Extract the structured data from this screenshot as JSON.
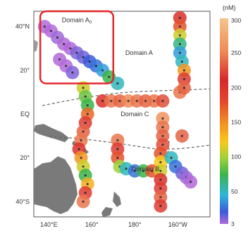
{
  "map": {
    "extent": {
      "lon_min": 133,
      "lon_max": 215,
      "lat_min": -47,
      "lat_max": 47
    },
    "lat_ticks": [
      {
        "lat": 40,
        "label": "40°N"
      },
      {
        "lat": 20,
        "label": "20°"
      },
      {
        "lat": 0,
        "label": "EQ"
      },
      {
        "lat": -20,
        "label": "20°"
      },
      {
        "lat": -40,
        "label": "40°S"
      }
    ],
    "lon_ticks": [
      {
        "lon": 140,
        "label": "140°E"
      },
      {
        "lon": 160,
        "label": "160°"
      },
      {
        "lon": 180,
        "label": "180°"
      },
      {
        "lon": 200,
        "label": "160°W"
      }
    ],
    "domains": [
      {
        "id": "domain-a0",
        "label": "Domain A",
        "sub": "0",
        "lon": 153,
        "lat": 42,
        "highlighted": true
      },
      {
        "id": "domain-a",
        "label": "Domain A",
        "sub": "",
        "lon": 182,
        "lat": 27
      },
      {
        "id": "domain-c",
        "label": "Domain C",
        "sub": "",
        "lon": 180,
        "lat": -1
      },
      {
        "id": "domain-b",
        "label": "Domain B",
        "sub": "",
        "lon": 185,
        "lat": -26
      }
    ],
    "highlight_box": {
      "lon_min": 136,
      "lon_max": 170,
      "lat_min": 14,
      "lat_max": 47,
      "color": "#e0262b"
    }
  },
  "colorbar": {
    "unit": "(nM)",
    "ticks": [
      300,
      250,
      200,
      150,
      100,
      50,
      3
    ],
    "colors": [
      "#f6c58a",
      "#ef8a55",
      "#d7282a",
      "#e2452b",
      "#f08a24",
      "#f8c81c",
      "#9fd23a",
      "#3bb44a",
      "#2fb6d9",
      "#3b5bd9",
      "#b36ad9"
    ]
  },
  "land_color": "#7a7a7a",
  "chart_data": {
    "type": "scatter",
    "title": "",
    "xlabel": "",
    "ylabel": "",
    "xlim": [
      133,
      215
    ],
    "ylim": [
      -47,
      47
    ],
    "value_range": [
      3,
      300
    ],
    "points": [
      {
        "lon": 138,
        "lat": 40,
        "v": 3
      },
      {
        "lon": 141,
        "lat": 38,
        "v": 3
      },
      {
        "lon": 144,
        "lat": 35,
        "v": 5
      },
      {
        "lon": 147,
        "lat": 32,
        "v": 3
      },
      {
        "lon": 150,
        "lat": 30,
        "v": 3
      },
      {
        "lon": 153,
        "lat": 28,
        "v": 8
      },
      {
        "lon": 156,
        "lat": 26,
        "v": 10
      },
      {
        "lon": 159,
        "lat": 24,
        "v": 15
      },
      {
        "lon": 162,
        "lat": 22,
        "v": 20
      },
      {
        "lon": 165,
        "lat": 20,
        "v": 30
      },
      {
        "lon": 145,
        "lat": 25,
        "v": 3
      },
      {
        "lon": 148,
        "lat": 22,
        "v": 3
      },
      {
        "lon": 151,
        "lat": 19,
        "v": 8
      },
      {
        "lon": 156,
        "lat": 12,
        "v": 90
      },
      {
        "lon": 157,
        "lat": 8,
        "v": 70
      },
      {
        "lon": 158,
        "lat": 4,
        "v": 60
      },
      {
        "lon": 158,
        "lat": 0,
        "v": 140
      },
      {
        "lon": 157,
        "lat": -4,
        "v": 200
      },
      {
        "lon": 156,
        "lat": -8,
        "v": 220
      },
      {
        "lon": 155,
        "lat": -12,
        "v": 230
      },
      {
        "lon": 154,
        "lat": -16,
        "v": 180
      },
      {
        "lon": 155,
        "lat": -20,
        "v": 120
      },
      {
        "lon": 156,
        "lat": -24,
        "v": 90
      },
      {
        "lon": 157,
        "lat": -28,
        "v": 60
      },
      {
        "lon": 158,
        "lat": -32,
        "v": 110
      },
      {
        "lon": 157,
        "lat": -36,
        "v": 200
      },
      {
        "lon": 156,
        "lat": -40,
        "v": 230
      },
      {
        "lon": 168,
        "lat": 17,
        "v": 60
      },
      {
        "lon": 172,
        "lat": 14,
        "v": 40
      },
      {
        "lon": 165,
        "lat": 6,
        "v": 180
      },
      {
        "lon": 169,
        "lat": 6,
        "v": 230
      },
      {
        "lon": 173,
        "lat": 6,
        "v": 220
      },
      {
        "lon": 177,
        "lat": 6,
        "v": 240
      },
      {
        "lon": 181,
        "lat": 6,
        "v": 230
      },
      {
        "lon": 185,
        "lat": 6,
        "v": 220
      },
      {
        "lon": 189,
        "lat": 6,
        "v": 230
      },
      {
        "lon": 193,
        "lat": 6,
        "v": 210
      },
      {
        "lon": 172,
        "lat": -12,
        "v": 230
      },
      {
        "lon": 172,
        "lat": -16,
        "v": 200
      },
      {
        "lon": 172,
        "lat": -20,
        "v": 150
      },
      {
        "lon": 173,
        "lat": -24,
        "v": 80
      },
      {
        "lon": 176,
        "lat": -25,
        "v": 40
      },
      {
        "lon": 180,
        "lat": -26,
        "v": 20
      },
      {
        "lon": 184,
        "lat": -26,
        "v": 60
      },
      {
        "lon": 188,
        "lat": -26,
        "v": 150
      },
      {
        "lon": 193,
        "lat": -2,
        "v": 250
      },
      {
        "lon": 193,
        "lat": -6,
        "v": 230
      },
      {
        "lon": 193,
        "lat": -10,
        "v": 220
      },
      {
        "lon": 193,
        "lat": -14,
        "v": 210
      },
      {
        "lon": 192,
        "lat": -18,
        "v": 150
      },
      {
        "lon": 192,
        "lat": -22,
        "v": 100
      },
      {
        "lon": 192,
        "lat": -26,
        "v": 90
      },
      {
        "lon": 192,
        "lat": -30,
        "v": 180
      },
      {
        "lon": 192,
        "lat": -34,
        "v": 200
      },
      {
        "lon": 192,
        "lat": -38,
        "v": 220
      },
      {
        "lon": 192,
        "lat": -42,
        "v": 200
      },
      {
        "lon": 197,
        "lat": -20,
        "v": 40
      },
      {
        "lon": 199,
        "lat": -24,
        "v": 20
      },
      {
        "lon": 202,
        "lat": -27,
        "v": 10
      },
      {
        "lon": 204,
        "lat": -29,
        "v": 5
      },
      {
        "lon": 206,
        "lat": -31,
        "v": 3
      },
      {
        "lon": 201,
        "lat": 10,
        "v": 230
      },
      {
        "lon": 202,
        "lat": -10,
        "v": 220
      },
      {
        "lon": 201,
        "lat": 44,
        "v": 180
      },
      {
        "lon": 201,
        "lat": 40,
        "v": 150
      },
      {
        "lon": 201,
        "lat": 36,
        "v": 90
      },
      {
        "lon": 201,
        "lat": 32,
        "v": 50
      },
      {
        "lon": 201,
        "lat": 28,
        "v": 30
      },
      {
        "lon": 202,
        "lat": 24,
        "v": 40
      },
      {
        "lon": 203,
        "lat": 20,
        "v": 120
      },
      {
        "lon": 203,
        "lat": 16,
        "v": 200
      },
      {
        "lon": 203,
        "lat": 12,
        "v": 220
      }
    ]
  }
}
